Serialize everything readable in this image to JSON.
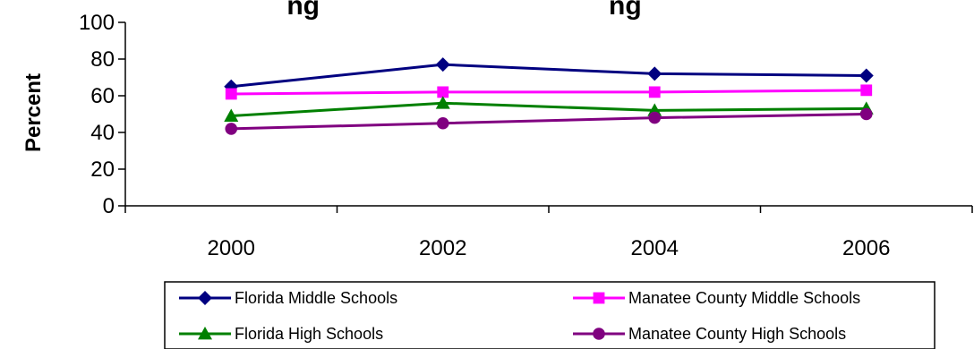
{
  "chart_data": {
    "type": "line",
    "title": "ng",
    "title_suffix": "ng",
    "ylabel": "Percent",
    "xlabel": "",
    "ylim": [
      0,
      100
    ],
    "y_ticks": [
      0,
      20,
      40,
      60,
      80,
      100
    ],
    "categories": [
      "2000",
      "2002",
      "2004",
      "2006"
    ],
    "grid": false,
    "legend_position": "bottom",
    "series": [
      {
        "name": "Florida Middle Schools",
        "color": "#000080",
        "marker": "diamond",
        "values": [
          65,
          77,
          72,
          71
        ]
      },
      {
        "name": "Manatee County Middle Schools",
        "color": "#FF00FF",
        "marker": "square",
        "values": [
          61,
          62,
          62,
          63
        ]
      },
      {
        "name": "Florida High Schools",
        "color": "#008000",
        "marker": "triangle",
        "values": [
          49,
          56,
          52,
          53
        ]
      },
      {
        "name": "Manatee County High Schools",
        "color": "#800080",
        "marker": "circle",
        "values": [
          42,
          45,
          48,
          50
        ]
      }
    ]
  }
}
